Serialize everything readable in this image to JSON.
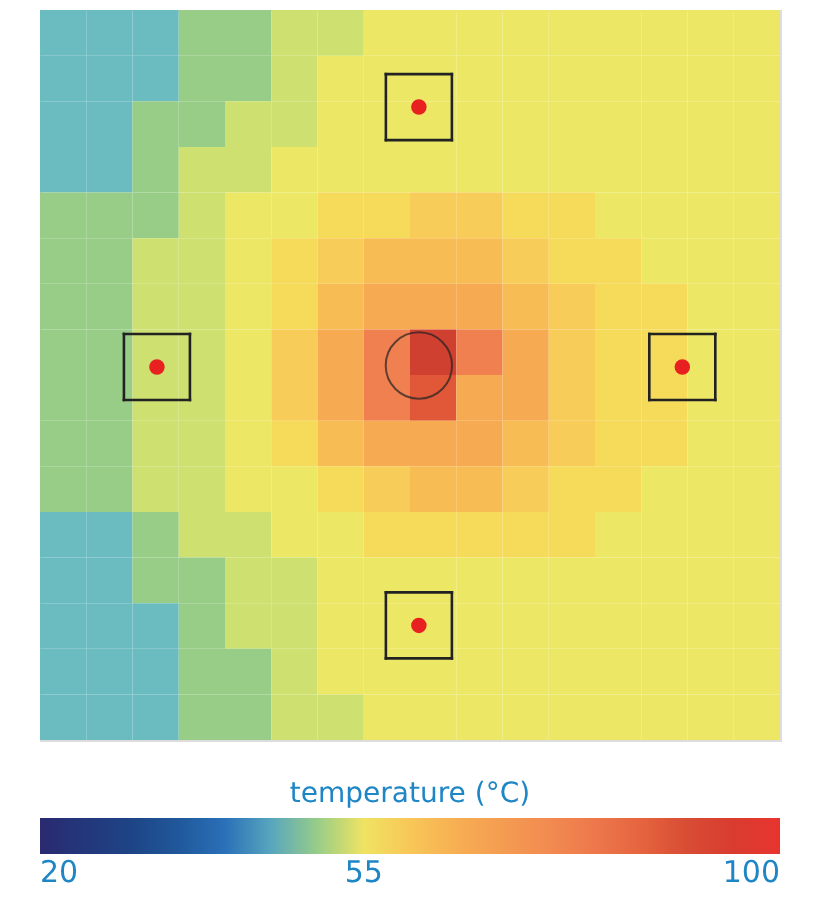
{
  "chart_data": {
    "type": "heatmap",
    "clabel": "temperature (°C)",
    "clim": [
      20,
      100
    ],
    "cticks": [
      20,
      55,
      100
    ],
    "categories": [
      null,
      null,
      null,
      null,
      null,
      null,
      null,
      null,
      null,
      null,
      null,
      null,
      null,
      null,
      null,
      null
    ],
    "y_categories": [
      null,
      null,
      null,
      null,
      null,
      null,
      null,
      null,
      null,
      null,
      null,
      null,
      null,
      null,
      null,
      null
    ],
    "cells": [
      [
        47,
        47,
        47,
        50,
        50,
        52,
        52,
        54,
        54,
        54,
        54,
        54,
        54,
        54,
        54,
        54
      ],
      [
        47,
        47,
        47,
        50,
        50,
        52,
        54,
        54,
        54,
        54,
        54,
        54,
        54,
        54,
        54,
        54
      ],
      [
        47,
        47,
        50,
        50,
        52,
        52,
        54,
        54,
        54,
        54,
        54,
        54,
        54,
        54,
        54,
        54
      ],
      [
        47,
        47,
        50,
        52,
        52,
        54,
        54,
        54,
        54,
        54,
        54,
        54,
        54,
        54,
        54,
        54
      ],
      [
        50,
        50,
        50,
        52,
        54,
        54,
        57,
        57,
        59,
        59,
        57,
        57,
        54,
        54,
        54,
        54
      ],
      [
        50,
        50,
        52,
        52,
        54,
        57,
        59,
        62,
        62,
        62,
        59,
        57,
        57,
        54,
        54,
        54
      ],
      [
        50,
        50,
        52,
        52,
        54,
        57,
        62,
        66,
        66,
        66,
        62,
        59,
        57,
        57,
        54,
        54
      ],
      [
        50,
        50,
        52,
        52,
        54,
        59,
        66,
        78,
        92,
        78,
        66,
        59,
        57,
        57,
        54,
        54
      ],
      [
        50,
        50,
        52,
        52,
        54,
        59,
        66,
        78,
        88,
        66,
        66,
        59,
        57,
        57,
        54,
        54
      ],
      [
        50,
        50,
        52,
        52,
        54,
        57,
        62,
        66,
        66,
        66,
        62,
        59,
        57,
        57,
        54,
        54
      ],
      [
        50,
        50,
        52,
        52,
        54,
        54,
        57,
        59,
        62,
        62,
        59,
        57,
        57,
        54,
        54,
        54
      ],
      [
        47,
        47,
        50,
        52,
        52,
        54,
        54,
        57,
        57,
        57,
        57,
        57,
        54,
        54,
        54,
        54
      ],
      [
        47,
        47,
        50,
        50,
        52,
        52,
        54,
        54,
        54,
        54,
        54,
        54,
        54,
        54,
        54,
        54
      ],
      [
        47,
        47,
        47,
        50,
        52,
        52,
        54,
        54,
        54,
        54,
        54,
        54,
        54,
        54,
        54,
        54
      ],
      [
        47,
        47,
        47,
        50,
        50,
        52,
        54,
        54,
        54,
        54,
        54,
        54,
        54,
        54,
        54,
        54
      ],
      [
        47,
        47,
        47,
        50,
        50,
        52,
        52,
        54,
        54,
        54,
        54,
        54,
        54,
        54,
        54,
        54
      ]
    ]
  }
}
